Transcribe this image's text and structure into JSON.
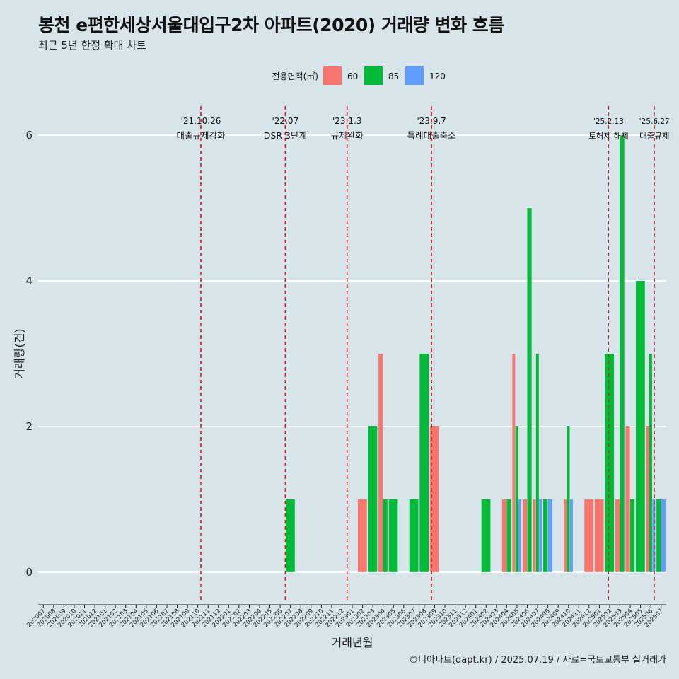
{
  "header": {
    "title": "봉천 e편한세상서울대입구2차 아파트(2020) 거래량 변화 흐름",
    "subtitle": "최근 5년 한정 확대 차트"
  },
  "caption": "©디아파트(dapt.kr) / 2025.07.19 / 자료=국토교통부 실거래가",
  "chart_data": {
    "type": "bar",
    "xlabel": "거래년월",
    "ylabel": "거래량(건)",
    "ylim": [
      -0.4,
      6.4
    ],
    "yticks": [
      0,
      2,
      4,
      6
    ],
    "grid": true,
    "legend": {
      "title": "전용면적(㎡)",
      "position": "top",
      "entries": [
        {
          "name": "60",
          "color": "#F8766D"
        },
        {
          "name": "85",
          "color": "#00BA38"
        },
        {
          "name": "120",
          "color": "#619CFF"
        }
      ]
    },
    "categories": [
      "202007",
      "202008",
      "202009",
      "202010",
      "202011",
      "202012",
      "202101",
      "202102",
      "202103",
      "202104",
      "202105",
      "202106",
      "202107",
      "202108",
      "202109",
      "202110",
      "202111",
      "202112",
      "202201",
      "202202",
      "202203",
      "202204",
      "202205",
      "202206",
      "202207",
      "202208",
      "202209",
      "202210",
      "202211",
      "202212",
      "202301",
      "202302",
      "202303",
      "202304",
      "202305",
      "202306",
      "202307",
      "202308",
      "202309",
      "202310",
      "202311",
      "202312",
      "202401",
      "202402",
      "202403",
      "202404",
      "202405",
      "202406",
      "202407",
      "202408",
      "202409",
      "202410",
      "202411",
      "202412",
      "202501",
      "202502",
      "202503",
      "202504",
      "202505",
      "202506",
      "202507"
    ],
    "bars": [
      {
        "x": "202207",
        "series": "85",
        "value": 1
      },
      {
        "x": "202302",
        "series": "60",
        "value": 1
      },
      {
        "x": "202303",
        "series": "85",
        "value": 2
      },
      {
        "x": "202304",
        "series": "60",
        "value": 3
      },
      {
        "x": "202304",
        "series": "85",
        "value": 1
      },
      {
        "x": "202305",
        "series": "85",
        "value": 1
      },
      {
        "x": "202307",
        "series": "85",
        "value": 1
      },
      {
        "x": "202308",
        "series": "85",
        "value": 3
      },
      {
        "x": "202309",
        "series": "60",
        "value": 2
      },
      {
        "x": "202402",
        "series": "85",
        "value": 1
      },
      {
        "x": "202404",
        "series": "60",
        "value": 1
      },
      {
        "x": "202404",
        "series": "85",
        "value": 1
      },
      {
        "x": "202405",
        "series": "60",
        "value": 3
      },
      {
        "x": "202405",
        "series": "85",
        "value": 2
      },
      {
        "x": "202405",
        "series": "120",
        "value": 1
      },
      {
        "x": "202406",
        "series": "60",
        "value": 1
      },
      {
        "x": "202406",
        "series": "85",
        "value": 5
      },
      {
        "x": "202407",
        "series": "60",
        "value": 1
      },
      {
        "x": "202407",
        "series": "85",
        "value": 3
      },
      {
        "x": "202407",
        "series": "120",
        "value": 1
      },
      {
        "x": "202408",
        "series": "85",
        "value": 1
      },
      {
        "x": "202408",
        "series": "120",
        "value": 1
      },
      {
        "x": "202410",
        "series": "60",
        "value": 1
      },
      {
        "x": "202410",
        "series": "85",
        "value": 2
      },
      {
        "x": "202410",
        "series": "120",
        "value": 1
      },
      {
        "x": "202412",
        "series": "60",
        "value": 1
      },
      {
        "x": "202501",
        "series": "60",
        "value": 1
      },
      {
        "x": "202502",
        "series": "85",
        "value": 3
      },
      {
        "x": "202503",
        "series": "60",
        "value": 1
      },
      {
        "x": "202503",
        "series": "85",
        "value": 6
      },
      {
        "x": "202504",
        "series": "60",
        "value": 2
      },
      {
        "x": "202504",
        "series": "85",
        "value": 1
      },
      {
        "x": "202505",
        "series": "85",
        "value": 4
      },
      {
        "x": "202506",
        "series": "60",
        "value": 2
      },
      {
        "x": "202506",
        "series": "85",
        "value": 3
      },
      {
        "x": "202506",
        "series": "120",
        "value": 1
      },
      {
        "x": "202507",
        "series": "85",
        "value": 1
      },
      {
        "x": "202507",
        "series": "120",
        "value": 1
      }
    ],
    "annotations": [
      {
        "x": "202110",
        "month_offset": 0.8,
        "date": "'21.10.26",
        "label": "대출규제강화",
        "style": "normal"
      },
      {
        "x": "202207",
        "month_offset": 0.0,
        "date": "'22.07",
        "label": "DSR 3단계",
        "style": "normal"
      },
      {
        "x": "202301",
        "month_offset": 0.0,
        "date": "'23.1.3",
        "label": "규제완화",
        "style": "normal"
      },
      {
        "x": "202309",
        "month_offset": 0.2,
        "date": "'23.9.7",
        "label": "특례대출축소",
        "style": "normal"
      },
      {
        "x": "202502",
        "month_offset": 0.4,
        "date": "'25.2.13",
        "label": "토허제 해제",
        "style": "small"
      },
      {
        "x": "202506",
        "month_offset": 0.85,
        "date": "'25.6.27",
        "label": "대출규제",
        "style": "small"
      }
    ]
  }
}
